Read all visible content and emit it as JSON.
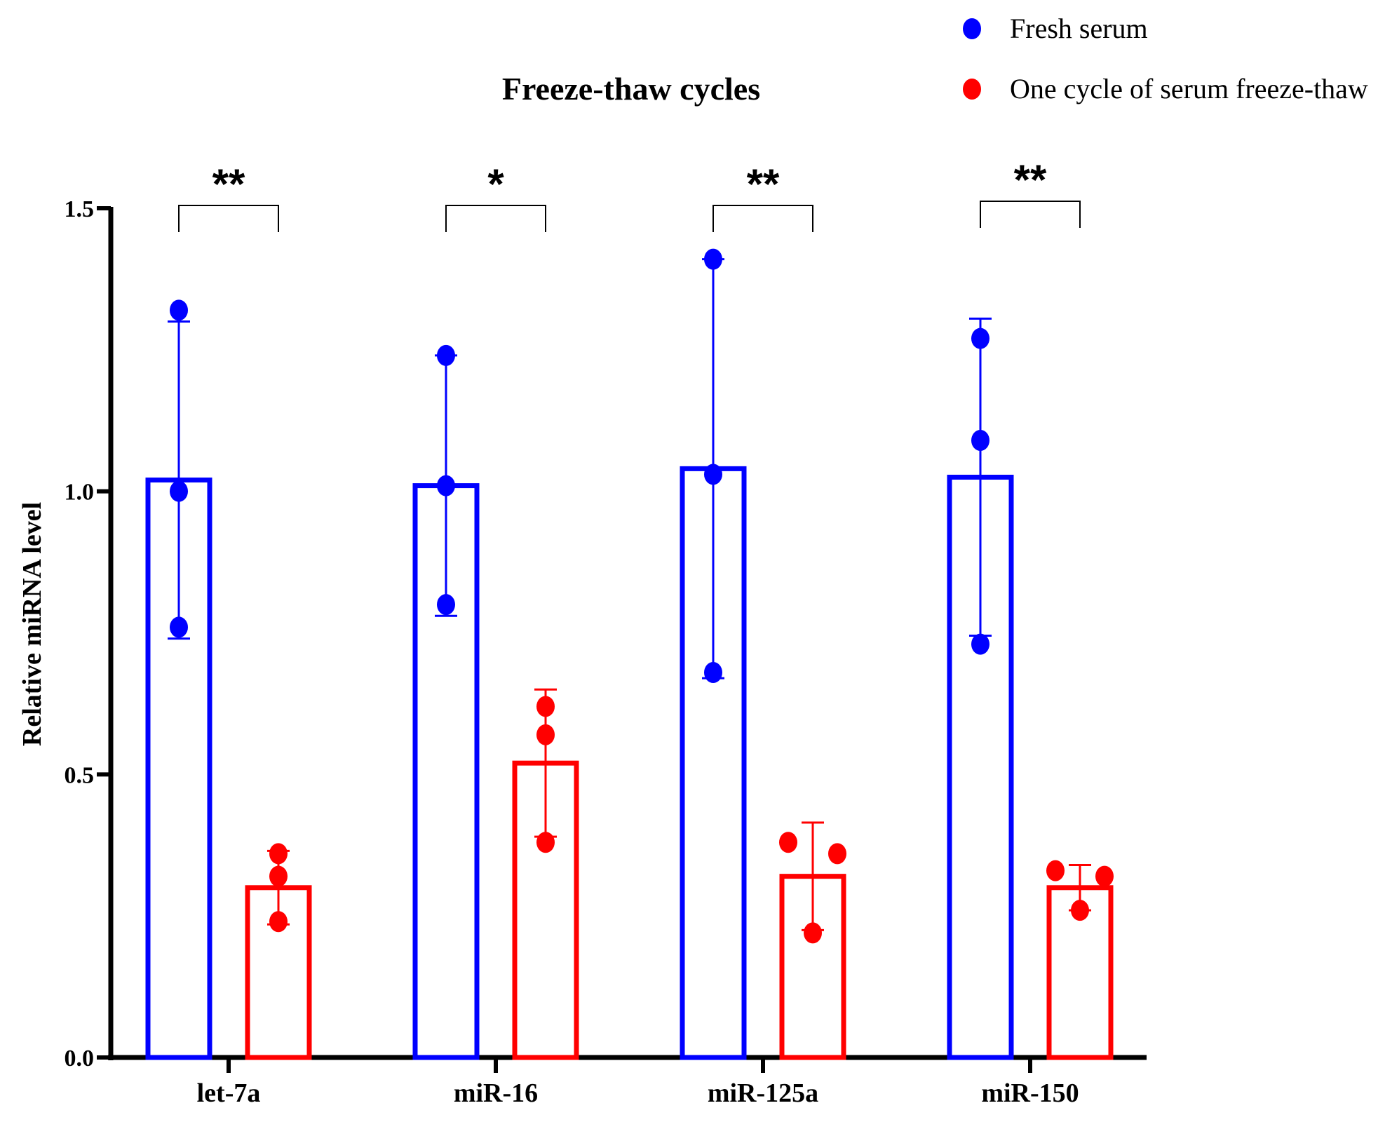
{
  "chart_data": {
    "type": "bar",
    "title": "Freeze-thaw cycles",
    "xlabel": "",
    "ylabel": "Relative miRNA level",
    "ylim": [
      0,
      1.5
    ],
    "yticks": [
      "0.0",
      "0.5",
      "1.0",
      "1.5"
    ],
    "categories": [
      "let-7a",
      "miR-16",
      "miR-125a",
      "miR-150"
    ],
    "legend_position": "top-right",
    "grid": false,
    "series": [
      {
        "name": "Fresh serum",
        "color": "#0000ff",
        "values": [
          1.02,
          1.01,
          1.04,
          1.025
        ],
        "error": [
          0.28,
          0.23,
          0.37,
          0.28
        ],
        "points": [
          [
            1.32,
            1.0,
            0.76
          ],
          [
            1.24,
            1.01,
            0.8
          ],
          [
            1.41,
            1.03,
            0.68
          ],
          [
            1.27,
            1.09,
            0.73
          ]
        ]
      },
      {
        "name": "One cycle of serum freeze-thaw",
        "color": "#ff0000",
        "values": [
          0.3,
          0.52,
          0.32,
          0.3
        ],
        "error": [
          0.065,
          0.13,
          0.095,
          0.04
        ],
        "points": [
          [
            0.36,
            0.32,
            0.24
          ],
          [
            0.62,
            0.57,
            0.38
          ],
          [
            0.38,
            0.36,
            0.22
          ],
          [
            0.33,
            0.32,
            0.26
          ]
        ]
      }
    ],
    "significance": [
      "**",
      "*",
      "**",
      "**"
    ]
  }
}
